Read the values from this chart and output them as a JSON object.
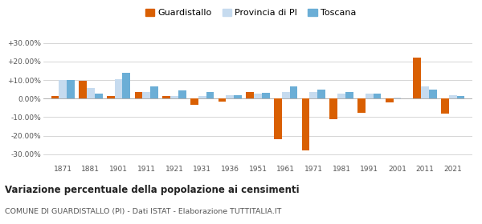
{
  "years": [
    1871,
    1881,
    1901,
    1911,
    1921,
    1931,
    1936,
    1951,
    1961,
    1971,
    1981,
    1991,
    2001,
    2011,
    2021
  ],
  "guardistallo": [
    1.5,
    9.5,
    1.5,
    3.5,
    1.2,
    -3.5,
    -1.5,
    3.5,
    -22.0,
    -28.0,
    -11.0,
    -7.5,
    -2.0,
    22.0,
    -8.0
  ],
  "provincia_pi": [
    10.0,
    5.5,
    10.5,
    3.5,
    1.5,
    1.5,
    2.0,
    2.5,
    3.5,
    3.5,
    2.5,
    2.5,
    0.5,
    6.5,
    2.0
  ],
  "toscana": [
    10.0,
    2.5,
    14.0,
    6.5,
    4.5,
    3.5,
    2.0,
    3.0,
    6.5,
    5.0,
    3.5,
    2.5,
    0.0,
    5.0,
    1.5
  ],
  "color_guardistallo": "#d95f02",
  "color_provincia": "#c6dbef",
  "color_toscana": "#6baed6",
  "legend_labels": [
    "Guardistallo",
    "Provincia di PI",
    "Toscana"
  ],
  "title": "Variazione percentuale della popolazione ai censimenti",
  "subtitle": "COMUNE DI GUARDISTALLO (PI) - Dati ISTAT - Elaborazione TUTTITALIA.IT",
  "ylim": [
    -35,
    35
  ],
  "yticks": [
    -30,
    -20,
    -10,
    0,
    10,
    20,
    30
  ],
  "ytick_labels": [
    "-30.00%",
    "-20.00%",
    "-10.00%",
    "0.00%",
    "+10.00%",
    "+20.00%",
    "+30.00%"
  ],
  "background_color": "#ffffff",
  "grid_color": "#d0d0d0",
  "bar_width": 0.28
}
